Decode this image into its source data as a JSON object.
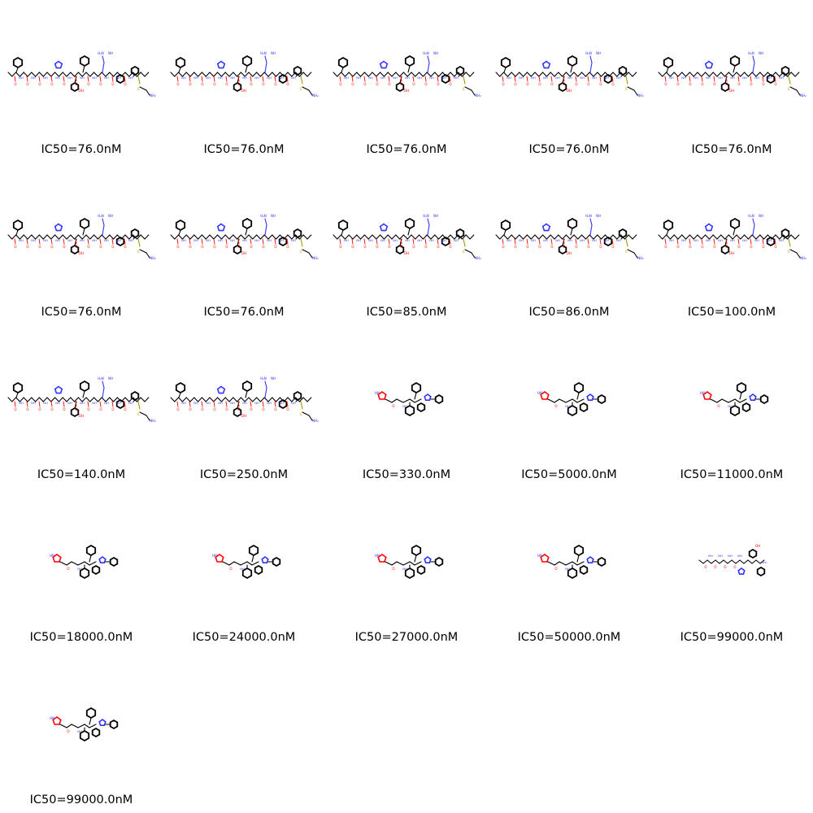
{
  "colors": {
    "bond": "#000000",
    "oxygen": "#ff0000",
    "nitrogen": "#3333ff",
    "sulfur": "#ccb300"
  },
  "atom_labels": {
    "nitrogen": "N",
    "amine": "NH",
    "amine_h": "H",
    "amide_terminal": "NH₂",
    "hydroxyl": "OH",
    "oxygen": "O",
    "sulfur": "S",
    "guanidine_nh2": "H₂N",
    "guanidine_nh": "NH",
    "cap_nh": "HN"
  },
  "molecules": [
    {
      "caption": "IC50=76.0nM",
      "structure": "long-peptide"
    },
    {
      "caption": "IC50=76.0nM",
      "structure": "long-peptide"
    },
    {
      "caption": "IC50=76.0nM",
      "structure": "long-peptide"
    },
    {
      "caption": "IC50=76.0nM",
      "structure": "long-peptide"
    },
    {
      "caption": "IC50=76.0nM",
      "structure": "long-peptide"
    },
    {
      "caption": "IC50=76.0nM",
      "structure": "long-peptide"
    },
    {
      "caption": "IC50=76.0nM",
      "structure": "long-peptide"
    },
    {
      "caption": "IC50=85.0nM",
      "structure": "long-peptide"
    },
    {
      "caption": "IC50=86.0nM",
      "structure": "long-peptide"
    },
    {
      "caption": "IC50=100.0nM",
      "structure": "long-peptide"
    },
    {
      "caption": "IC50=140.0nM",
      "structure": "long-peptide"
    },
    {
      "caption": "IC50=250.0nM",
      "structure": "long-peptide"
    },
    {
      "caption": "IC50=330.0nM",
      "structure": "small-tripeptide"
    },
    {
      "caption": "IC50=5000.0nM",
      "structure": "small-tripeptide"
    },
    {
      "caption": "IC50=11000.0nM",
      "structure": "small-tripeptide"
    },
    {
      "caption": "IC50=18000.0nM",
      "structure": "small-tripeptide"
    },
    {
      "caption": "IC50=24000.0nM",
      "structure": "small-tripeptide"
    },
    {
      "caption": "IC50=27000.0nM",
      "structure": "small-tripeptide"
    },
    {
      "caption": "IC50=50000.0nM",
      "structure": "small-tripeptide"
    },
    {
      "caption": "IC50=99000.0nM",
      "structure": "medium-peptide"
    },
    {
      "caption": "IC50=99000.0nM",
      "structure": "small-tripeptide"
    }
  ]
}
